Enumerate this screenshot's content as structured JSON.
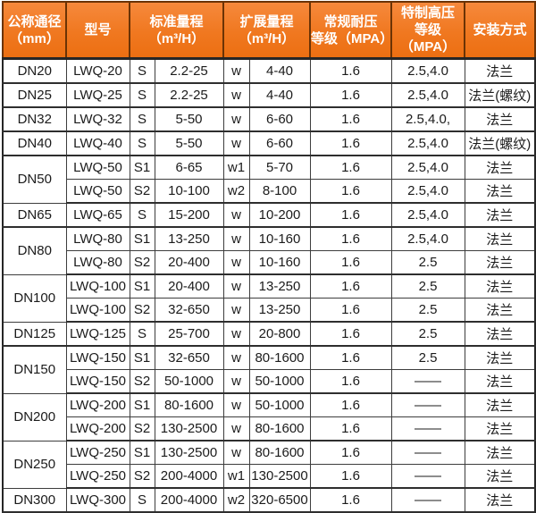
{
  "table": {
    "headers": [
      {
        "id": "dn",
        "label": "公称通径\n（mm）",
        "colspan": 1
      },
      {
        "id": "model",
        "label": "型号",
        "colspan": 1
      },
      {
        "id": "std",
        "label": "标准量程\n（m³/H）",
        "colspan": 2
      },
      {
        "id": "ext",
        "label": "扩展量程\n（m³/H）",
        "colspan": 2
      },
      {
        "id": "regular",
        "label": "常规耐压\n等级（MPA）",
        "colspan": 1
      },
      {
        "id": "special",
        "label": "特制高压\n等级（MPA）",
        "colspan": 1
      },
      {
        "id": "install",
        "label": "安装方式",
        "colspan": 1
      }
    ],
    "colors": {
      "header_orange": "#f07820",
      "header_divider": "#6b3305",
      "grid_line": "#3d3d3d",
      "outer_border": "#262626",
      "header_text": "#ffffff",
      "body_text": "#1b1b1b"
    },
    "rows": [
      {
        "dn": "DN20",
        "dn_span": 1,
        "model": "LWQ-20",
        "std_code": "S",
        "std_range": "2.2-25",
        "ext_code": "w",
        "ext_range": "4-40",
        "regular_mpa": "1.6",
        "special_mpa": "2.5,4.0",
        "install": "法兰",
        "group_end": true
      },
      {
        "dn": "DN25",
        "dn_span": 1,
        "model": "LWQ-25",
        "std_code": "S",
        "std_range": "2.2-25",
        "ext_code": "w",
        "ext_range": "4-40",
        "regular_mpa": "1.6",
        "special_mpa": "2.5,4.0",
        "install": "法兰(螺纹)",
        "group_end": true
      },
      {
        "dn": "DN32",
        "dn_span": 1,
        "model": "LWQ-32",
        "std_code": "S",
        "std_range": "5-50",
        "ext_code": "w",
        "ext_range": "6-60",
        "regular_mpa": "1.6",
        "special_mpa": "2.5,4.0,",
        "install": "法兰",
        "group_end": true
      },
      {
        "dn": "DN40",
        "dn_span": 1,
        "model": "LWQ-40",
        "std_code": "S",
        "std_range": "5-50",
        "ext_code": "w",
        "ext_range": "6-60",
        "regular_mpa": "1.6",
        "special_mpa": "2.5,4.0",
        "install": "法兰(螺纹)",
        "group_end": true
      },
      {
        "dn": "DN50",
        "dn_span": 2,
        "model": "LWQ-50",
        "std_code": "S1",
        "std_range": "6-65",
        "ext_code": "w1",
        "ext_range": "5-70",
        "regular_mpa": "1.6",
        "special_mpa": "2.5,4.0",
        "install": "法兰",
        "group_end": false
      },
      {
        "model": "LWQ-50",
        "std_code": "S2",
        "std_range": "10-100",
        "ext_code": "w2",
        "ext_range": "8-100",
        "regular_mpa": "1.6",
        "special_mpa": "2.5,4.0",
        "install": "法兰",
        "group_end": true
      },
      {
        "dn": "DN65",
        "dn_span": 1,
        "model": "LWQ-65",
        "std_code": "S",
        "std_range": "15-200",
        "ext_code": "w",
        "ext_range": "10-200",
        "regular_mpa": "1.6",
        "special_mpa": "2.5,4.0",
        "install": "法兰",
        "group_end": true
      },
      {
        "dn": "DN80",
        "dn_span": 2,
        "model": "LWQ-80",
        "std_code": "S1",
        "std_range": "13-250",
        "ext_code": "w",
        "ext_range": "10-160",
        "regular_mpa": "1.6",
        "special_mpa": "2.5,4.0",
        "install": "法兰",
        "group_end": false
      },
      {
        "model": "LWQ-80",
        "std_code": "S2",
        "std_range": "20-400",
        "ext_code": "w",
        "ext_range": "10-160",
        "regular_mpa": "1.6",
        "special_mpa": "2.5",
        "install": "法兰",
        "group_end": true
      },
      {
        "dn": "DN100",
        "dn_span": 2,
        "model": "LWQ-100",
        "std_code": "S1",
        "std_range": "20-400",
        "ext_code": "w",
        "ext_range": "13-250",
        "regular_mpa": "1.6",
        "special_mpa": "2.5",
        "install": "法兰",
        "group_end": false
      },
      {
        "model": "LWQ-100",
        "std_code": "S2",
        "std_range": "32-650",
        "ext_code": "w",
        "ext_range": "13-250",
        "regular_mpa": "1.6",
        "special_mpa": "2.5",
        "install": "法兰",
        "group_end": true
      },
      {
        "dn": "DN125",
        "dn_span": 1,
        "model": "LWQ-125",
        "std_code": "S",
        "std_range": "25-700",
        "ext_code": "w",
        "ext_range": "20-800",
        "regular_mpa": "1.6",
        "special_mpa": "2.5",
        "install": "法兰",
        "group_end": true
      },
      {
        "dn": "DN150",
        "dn_span": 2,
        "model": "LWQ-150",
        "std_code": "S1",
        "std_range": "32-650",
        "ext_code": "w",
        "ext_range": "80-1600",
        "regular_mpa": "1.6",
        "special_mpa": "2.5",
        "install": "法兰",
        "group_end": false
      },
      {
        "model": "LWQ-150",
        "std_code": "S2",
        "std_range": "50-1000",
        "ext_code": "w",
        "ext_range": "50-1000",
        "regular_mpa": "1.6",
        "special_mpa": "——",
        "install": "法兰",
        "group_end": true
      },
      {
        "dn": "DN200",
        "dn_span": 2,
        "model": "LWQ-200",
        "std_code": "S1",
        "std_range": "80-1600",
        "ext_code": "w",
        "ext_range": "50-1000",
        "regular_mpa": "1.6",
        "special_mpa": "——",
        "install": "法兰",
        "group_end": false
      },
      {
        "model": "LWQ-200",
        "std_code": "S2",
        "std_range": "130-2500",
        "ext_code": "w",
        "ext_range": "80-1600",
        "regular_mpa": "1.6",
        "special_mpa": "——",
        "install": "法兰",
        "group_end": true
      },
      {
        "dn": "DN250",
        "dn_span": 2,
        "model": "LWQ-250",
        "std_code": "S1",
        "std_range": "130-2500",
        "ext_code": "w",
        "ext_range": "80-1600",
        "regular_mpa": "1.6",
        "special_mpa": "——",
        "install": "法兰",
        "group_end": false
      },
      {
        "model": "LWQ-250",
        "std_code": "S2",
        "std_range": "200-4000",
        "ext_code": "w1",
        "ext_range": "130-2500",
        "regular_mpa": "1.6",
        "special_mpa": "——",
        "install": "法兰",
        "group_end": true
      },
      {
        "dn": "DN300",
        "dn_span": 1,
        "model": "LWQ-300",
        "std_code": "S",
        "std_range": "200-4000",
        "ext_code": "w2",
        "ext_range": "320-6500",
        "regular_mpa": "1.6",
        "special_mpa": "——",
        "install": "法兰",
        "group_end": true
      }
    ]
  }
}
